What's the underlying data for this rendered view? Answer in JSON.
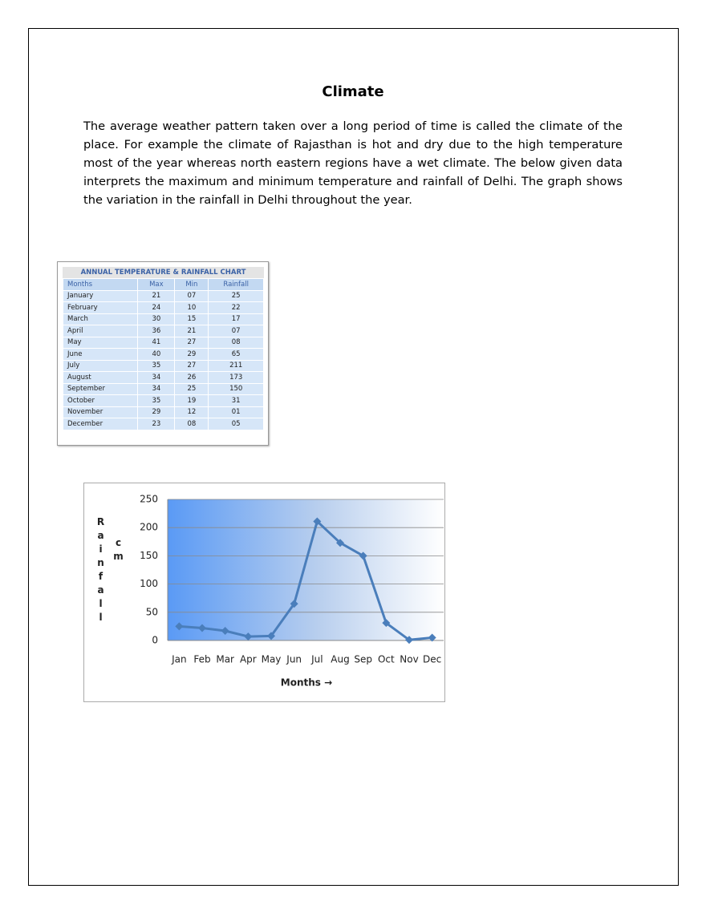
{
  "title": "Climate",
  "paragraph": "The average weather pattern taken over a long period of time is called the climate of the place. For example the climate of Rajasthan is hot and dry due to the high temperature most of the year whereas north eastern regions have a wet climate. The below given data interprets the maximum and minimum temperature and rainfall of Delhi. The graph shows the variation in the rainfall in Delhi throughout the year.",
  "table": {
    "title": "ANNUAL TEMPERATURE & RAINFALL CHART",
    "header": [
      "Months",
      "Max",
      "Min",
      "Rainfall"
    ],
    "rows": [
      [
        "January",
        "21",
        "07",
        "25"
      ],
      [
        "February",
        "24",
        "10",
        "22"
      ],
      [
        "March",
        "30",
        "15",
        "17"
      ],
      [
        "April",
        "36",
        "21",
        "07"
      ],
      [
        "May",
        "41",
        "27",
        "08"
      ],
      [
        "June",
        "40",
        "29",
        "65"
      ],
      [
        "July",
        "35",
        "27",
        "211"
      ],
      [
        "August",
        "34",
        "26",
        "173"
      ],
      [
        "September",
        "34",
        "25",
        "150"
      ],
      [
        "October",
        "35",
        "19",
        "31"
      ],
      [
        "November",
        "29",
        "12",
        "01"
      ],
      [
        "December",
        "23",
        "08",
        "05"
      ]
    ]
  },
  "chart_data": {
    "type": "line",
    "y_label": "Rainfall",
    "y_unit": "cm",
    "x_label": "Months →",
    "categories": [
      "Jan",
      "Feb",
      "Mar",
      "Apr",
      "May",
      "Jun",
      "Jul",
      "Aug",
      "Sep",
      "Oct",
      "Nov",
      "Dec"
    ],
    "values": [
      25,
      22,
      17,
      7,
      8,
      65,
      211,
      173,
      150,
      31,
      1,
      5
    ],
    "color": "#4a7ebb",
    "ylim": [
      0,
      250
    ],
    "yticks": [
      0,
      50,
      100,
      150,
      200,
      250
    ],
    "grid": true
  }
}
